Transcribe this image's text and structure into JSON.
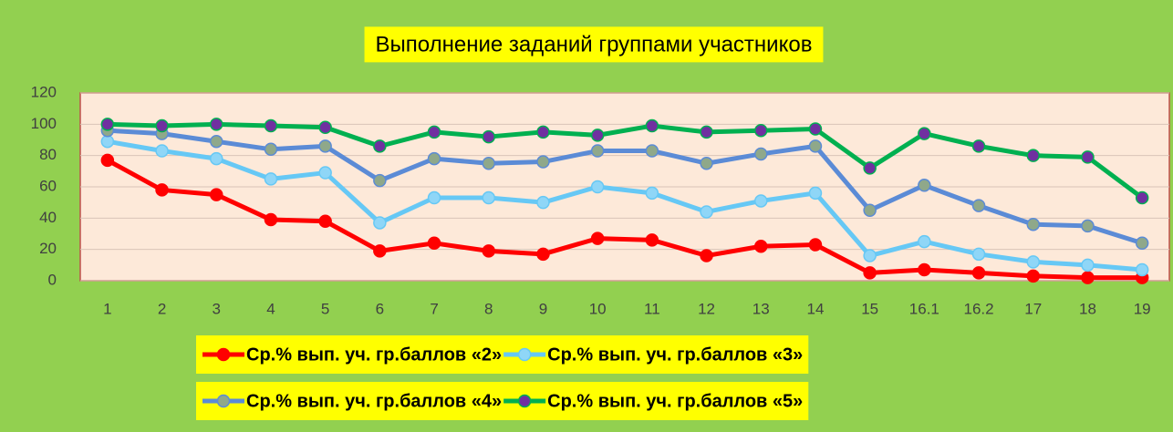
{
  "chart_data": {
    "type": "line",
    "title": "Выполнение заданий группами участников",
    "categories": [
      "1",
      "2",
      "3",
      "4",
      "5",
      "6",
      "7",
      "8",
      "9",
      "10",
      "11",
      "12",
      "13",
      "14",
      "15",
      "16.1",
      "16.2",
      "17",
      "18",
      "19"
    ],
    "ylim": [
      0,
      120
    ],
    "yticks": [
      0,
      20,
      40,
      60,
      80,
      100,
      120
    ],
    "grid": true,
    "series": [
      {
        "name": "Ср.% вып. уч. гр.баллов «2»",
        "color": "#ff0000",
        "marker_color": "#ff0000",
        "values": [
          77,
          58,
          55,
          39,
          38,
          19,
          24,
          19,
          17,
          27,
          26,
          16,
          22,
          23,
          5,
          7,
          5,
          3,
          2,
          2
        ]
      },
      {
        "name": "Ср.% вып. уч. гр.баллов «3»",
        "color": "#66c8f5",
        "marker_color": "#8fd6f7",
        "values": [
          89,
          83,
          78,
          65,
          69,
          37,
          53,
          53,
          50,
          60,
          56,
          44,
          51,
          56,
          16,
          25,
          17,
          12,
          10,
          7
        ]
      },
      {
        "name": "Ср.% вып. уч. гр.баллов «4»",
        "color": "#5b8bd6",
        "marker_color": "#8fa88a",
        "values": [
          96,
          94,
          89,
          84,
          86,
          64,
          78,
          75,
          76,
          83,
          83,
          75,
          81,
          86,
          45,
          61,
          48,
          36,
          35,
          24
        ]
      },
      {
        "name": "Ср.% вып. уч. гр.баллов «5»",
        "color": "#00b050",
        "marker_color": "#7030a0",
        "values": [
          100,
          99,
          100,
          99,
          98,
          86,
          95,
          92,
          95,
          93,
          99,
          95,
          96,
          97,
          72,
          94,
          86,
          80,
          79,
          53
        ]
      }
    ]
  }
}
